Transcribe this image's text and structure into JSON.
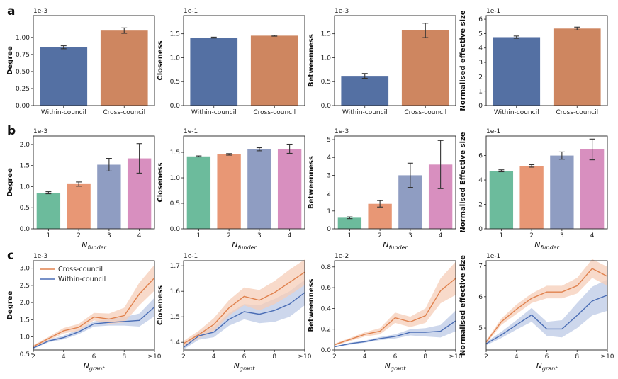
{
  "panel_labels": [
    "a",
    "b",
    "c"
  ],
  "colors": {
    "within": "#5470a3",
    "cross": "#ce8660",
    "funder": [
      "#6cbb9c",
      "#e89775",
      "#8f9dc2",
      "#d88fbf"
    ],
    "line_cross": "#e0824e",
    "line_within": "#4a6db5",
    "band_cross": "#f6cdb8",
    "band_within": "#bccae6"
  },
  "chart_data": [
    {
      "row": "a",
      "type": "bar",
      "ylabel": "Degree",
      "sci": "1e-3",
      "categories": [
        "Within-council",
        "Cross-council"
      ],
      "values": [
        0.855,
        1.1
      ],
      "errors": [
        0.022,
        0.04
      ],
      "ylim": [
        0,
        1.32
      ],
      "yticks": [
        0,
        0.25,
        0.5,
        0.75,
        1.0
      ],
      "ytick_labels": [
        "0.00",
        "0.25",
        "0.50",
        "0.75",
        "1.00"
      ]
    },
    {
      "row": "a",
      "type": "bar",
      "ylabel": "Closeness",
      "sci": "1e-1",
      "categories": [
        "Within-council",
        "Cross-council"
      ],
      "values": [
        1.42,
        1.46
      ],
      "errors": [
        0.01,
        0.01
      ],
      "ylim": [
        0,
        1.88
      ],
      "yticks": [
        0,
        0.5,
        1.0,
        1.5
      ],
      "ytick_labels": [
        "0.0",
        "0.5",
        "1.0",
        "1.5"
      ]
    },
    {
      "row": "a",
      "type": "bar",
      "ylabel": "Betweenness",
      "sci": "1e-3",
      "categories": [
        "Within-council",
        "Cross-council"
      ],
      "values": [
        0.62,
        1.57
      ],
      "errors": [
        0.05,
        0.15
      ],
      "ylim": [
        0,
        1.88
      ],
      "yticks": [
        0,
        0.5,
        1.0,
        1.5
      ],
      "ytick_labels": [
        "0.0",
        "0.5",
        "1.0",
        "1.5"
      ]
    },
    {
      "row": "a",
      "type": "bar",
      "ylabel": "Normalised effective size",
      "sci": "1e-1",
      "categories": [
        "Within-council",
        "Cross-council"
      ],
      "values": [
        4.75,
        5.35
      ],
      "errors": [
        0.08,
        0.1
      ],
      "ylim": [
        0,
        6.25
      ],
      "yticks": [
        0,
        1,
        2,
        3,
        4,
        5,
        6
      ],
      "ytick_labels": [
        "0",
        "1",
        "2",
        "3",
        "4",
        "5",
        "6"
      ]
    },
    {
      "row": "b",
      "type": "bar",
      "ylabel": "Degree",
      "sci": "1e-3",
      "xlabel_base": "N",
      "xlabel_sub": "funder",
      "categories": [
        "1",
        "2",
        "3",
        "4"
      ],
      "values": [
        0.855,
        1.06,
        1.52,
        1.67
      ],
      "errors": [
        0.025,
        0.05,
        0.15,
        0.35
      ],
      "ylim": [
        0,
        2.2
      ],
      "yticks": [
        0,
        0.5,
        1.0,
        1.5,
        2.0
      ],
      "ytick_labels": [
        "0.0",
        "0.5",
        "1.0",
        "1.5",
        "2.0"
      ]
    },
    {
      "row": "b",
      "type": "bar",
      "ylabel": "Closeness",
      "sci": "1e-1",
      "xlabel_base": "N",
      "xlabel_sub": "funder",
      "categories": [
        "1",
        "2",
        "3",
        "4"
      ],
      "values": [
        1.42,
        1.46,
        1.56,
        1.57
      ],
      "errors": [
        0.01,
        0.015,
        0.03,
        0.09
      ],
      "ylim": [
        0,
        1.82
      ],
      "yticks": [
        0,
        0.5,
        1.0,
        1.5
      ],
      "ytick_labels": [
        "0.0",
        "0.5",
        "1.0",
        "1.5"
      ]
    },
    {
      "row": "b",
      "type": "bar",
      "ylabel": "Betweenness",
      "sci": "1e-3",
      "xlabel_base": "N",
      "xlabel_sub": "funder",
      "categories": [
        "1",
        "2",
        "3",
        "4"
      ],
      "values": [
        0.62,
        1.4,
        3.0,
        3.6
      ],
      "errors": [
        0.05,
        0.18,
        0.68,
        1.35
      ],
      "ylim": [
        0,
        5.2
      ],
      "yticks": [
        0,
        1,
        2,
        3,
        4,
        5
      ],
      "ytick_labels": [
        "0",
        "1",
        "2",
        "3",
        "4",
        "5"
      ]
    },
    {
      "row": "b",
      "type": "bar",
      "ylabel": "Normalised Effective size",
      "sci": "1e-1",
      "xlabel_base": "N",
      "xlabel_sub": "funder",
      "categories": [
        "1",
        "2",
        "3",
        "4"
      ],
      "values": [
        4.75,
        5.15,
        6.0,
        6.5
      ],
      "errors": [
        0.08,
        0.1,
        0.3,
        0.85
      ],
      "ylim": [
        0,
        7.6
      ],
      "yticks": [
        0,
        2,
        4,
        6
      ],
      "ytick_labels": [
        "0",
        "2",
        "4",
        "6"
      ]
    },
    {
      "row": "c",
      "type": "line",
      "ylabel": "Degree",
      "sci": "1e-3",
      "xlabel_base": "N",
      "xlabel_sub": "grant",
      "x": [
        2,
        3,
        4,
        5,
        6,
        7,
        8,
        9,
        10
      ],
      "xlim": [
        2,
        10
      ],
      "xticks": [
        2,
        4,
        6,
        8,
        10
      ],
      "xtick_labels": [
        "2",
        "4",
        "6",
        "8",
        "≥10"
      ],
      "ylim": [
        0.62,
        3.22
      ],
      "yticks": [
        0.5,
        1.0,
        1.5,
        2.0,
        2.5,
        3.0
      ],
      "ytick_labels": [
        "0.5",
        "1.0",
        "1.5",
        "2.0",
        "2.5",
        "3.0"
      ],
      "series": [
        {
          "name": "Cross-council",
          "values": [
            0.72,
            0.95,
            1.18,
            1.28,
            1.58,
            1.52,
            1.62,
            2.25,
            2.72
          ],
          "lower": [
            0.68,
            0.9,
            1.1,
            1.18,
            1.48,
            1.38,
            1.42,
            1.92,
            2.35
          ],
          "upper": [
            0.76,
            1.0,
            1.26,
            1.38,
            1.7,
            1.68,
            1.85,
            2.58,
            3.1
          ]
        },
        {
          "name": "Within-council",
          "values": [
            0.68,
            0.88,
            0.98,
            1.15,
            1.38,
            1.42,
            1.45,
            1.48,
            1.87
          ],
          "lower": [
            0.65,
            0.84,
            0.93,
            1.08,
            1.3,
            1.33,
            1.33,
            1.3,
            1.6
          ],
          "upper": [
            0.72,
            0.92,
            1.04,
            1.22,
            1.45,
            1.52,
            1.58,
            1.68,
            2.14
          ]
        }
      ],
      "legend": [
        "Cross-council",
        "Within-council"
      ]
    },
    {
      "row": "c",
      "type": "line",
      "ylabel": "Closeness",
      "sci": "1e-1",
      "xlabel_base": "N",
      "xlabel_sub": "grant",
      "x": [
        2,
        3,
        4,
        5,
        6,
        7,
        8,
        9,
        10
      ],
      "xlim": [
        2,
        10
      ],
      "xticks": [
        2,
        4,
        6,
        8,
        10
      ],
      "xtick_labels": [
        "2",
        "4",
        "6",
        "8",
        "≥10"
      ],
      "ylim": [
        1.37,
        1.72
      ],
      "yticks": [
        1.4,
        1.5,
        1.6,
        1.7
      ],
      "ytick_labels": [
        "1.4",
        "1.5",
        "1.6",
        "1.7"
      ],
      "series": [
        {
          "name": "Cross-council",
          "values": [
            1.395,
            1.43,
            1.47,
            1.535,
            1.58,
            1.565,
            1.595,
            1.635,
            1.675
          ],
          "lower": [
            1.385,
            1.415,
            1.445,
            1.505,
            1.545,
            1.525,
            1.55,
            1.585,
            1.625
          ],
          "upper": [
            1.405,
            1.445,
            1.495,
            1.565,
            1.615,
            1.605,
            1.64,
            1.685,
            1.725
          ]
        },
        {
          "name": "Within-council",
          "values": [
            1.38,
            1.425,
            1.44,
            1.49,
            1.52,
            1.51,
            1.525,
            1.55,
            1.595
          ],
          "lower": [
            1.372,
            1.41,
            1.42,
            1.465,
            1.49,
            1.475,
            1.48,
            1.5,
            1.545
          ],
          "upper": [
            1.388,
            1.44,
            1.46,
            1.515,
            1.55,
            1.545,
            1.57,
            1.6,
            1.645
          ]
        }
      ]
    },
    {
      "row": "c",
      "type": "line",
      "ylabel": "Betweenness",
      "sci": "1e-2",
      "xlabel_base": "N",
      "xlabel_sub": "grant",
      "x": [
        2,
        3,
        4,
        5,
        6,
        7,
        8,
        9,
        10
      ],
      "xlim": [
        2,
        10
      ],
      "xticks": [
        2,
        4,
        6,
        8,
        10
      ],
      "xtick_labels": [
        "2",
        "4",
        "6",
        "8",
        "≥10"
      ],
      "ylim": [
        0,
        0.86
      ],
      "yticks": [
        0,
        0.2,
        0.4,
        0.6,
        0.8
      ],
      "ytick_labels": [
        "0.0",
        "0.2",
        "0.4",
        "0.6",
        "0.8"
      ],
      "series": [
        {
          "name": "Cross-council",
          "values": [
            0.05,
            0.1,
            0.15,
            0.18,
            0.31,
            0.27,
            0.33,
            0.57,
            0.69
          ],
          "lower": [
            0.04,
            0.085,
            0.13,
            0.15,
            0.26,
            0.22,
            0.26,
            0.45,
            0.53
          ],
          "upper": [
            0.06,
            0.115,
            0.17,
            0.21,
            0.36,
            0.32,
            0.4,
            0.69,
            0.85
          ]
        },
        {
          "name": "Within-council",
          "values": [
            0.03,
            0.06,
            0.08,
            0.11,
            0.13,
            0.17,
            0.17,
            0.18,
            0.28
          ],
          "lower": [
            0.025,
            0.05,
            0.07,
            0.095,
            0.11,
            0.14,
            0.13,
            0.12,
            0.18
          ],
          "upper": [
            0.035,
            0.07,
            0.09,
            0.125,
            0.15,
            0.2,
            0.21,
            0.24,
            0.38
          ]
        }
      ]
    },
    {
      "row": "c",
      "type": "line",
      "ylabel": "Normalised effective size",
      "sci": "1e-1",
      "xlabel_base": "N",
      "xlabel_sub": "grant",
      "x": [
        2,
        3,
        4,
        5,
        6,
        7,
        8,
        9,
        10
      ],
      "xlim": [
        2,
        10
      ],
      "xticks": [
        2,
        4,
        6,
        8,
        10
      ],
      "xtick_labels": [
        "2",
        "4",
        "6",
        "8",
        "≥10"
      ],
      "ylim": [
        4.3,
        7.15
      ],
      "yticks": [
        5,
        6,
        7
      ],
      "ytick_labels": [
        "5",
        "6",
        "7"
      ],
      "series": [
        {
          "name": "Cross-council",
          "values": [
            4.55,
            5.2,
            5.6,
            5.95,
            6.15,
            6.15,
            6.35,
            6.9,
            6.65
          ],
          "lower": [
            4.5,
            5.1,
            5.45,
            5.8,
            5.95,
            5.95,
            6.1,
            6.6,
            6.35
          ],
          "upper": [
            4.6,
            5.3,
            5.75,
            6.1,
            6.35,
            6.35,
            6.6,
            7.2,
            6.95
          ]
        },
        {
          "name": "Within-council",
          "values": [
            4.5,
            4.78,
            5.1,
            5.42,
            4.97,
            4.97,
            5.4,
            5.86,
            6.05
          ],
          "lower": [
            4.45,
            4.68,
            4.95,
            5.2,
            4.75,
            4.7,
            5.0,
            5.4,
            5.55
          ],
          "upper": [
            4.55,
            4.88,
            5.25,
            5.64,
            5.2,
            5.25,
            5.8,
            6.32,
            6.55
          ]
        }
      ]
    }
  ]
}
